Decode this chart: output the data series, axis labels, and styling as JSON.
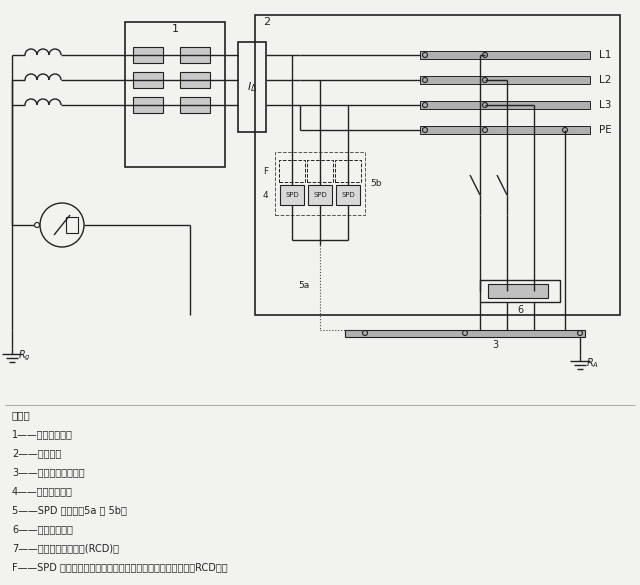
{
  "background_color": "#f2f2ee",
  "line_color": "#222222",
  "legend_lines": [
    "说明：",
    "1——装置的电源；",
    "2——配电盘；",
    "3——总接地端子或排；",
    "4——电涌保护器；",
    "5——SPD 的接地，5a 或 5b；",
    "6——被保护设备；",
    "7——剩余电流保护装置(RCD)；",
    "F——SPD 制造厂要求装设的保护器（例如：熔断器，断路器，RCD）；"
  ]
}
